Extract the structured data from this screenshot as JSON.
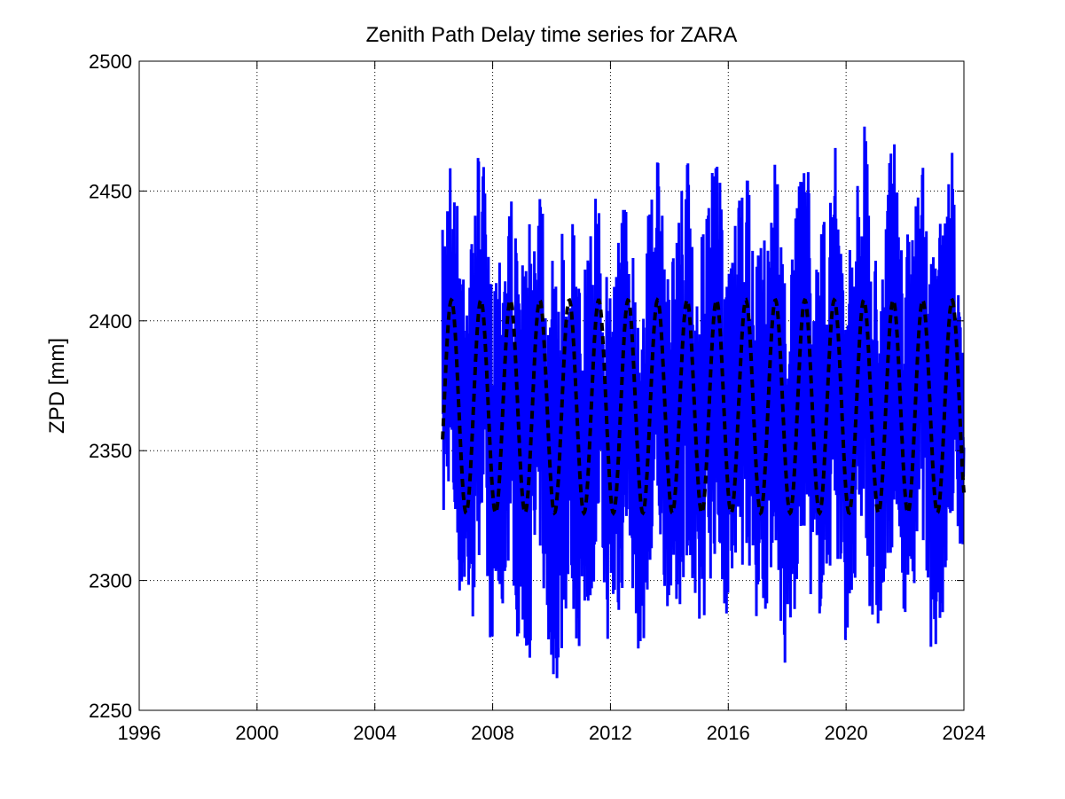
{
  "chart_data": {
    "type": "line",
    "title": "Zenith Path Delay time series for ZARA",
    "xlabel": "",
    "ylabel": "ZPD [mm]",
    "xlim": [
      1996,
      2024
    ],
    "ylim": [
      2250,
      2500
    ],
    "xticks": [
      "1996",
      "2000",
      "2004",
      "2008",
      "2012",
      "2016",
      "2020",
      "2024"
    ],
    "yticks": [
      "2250",
      "2300",
      "2350",
      "2400",
      "2450",
      "2500"
    ],
    "grid": true,
    "series": [
      {
        "style": "solid",
        "color": "#0000ff",
        "x": [
          2006.3,
          2006.5,
          2006.9,
          2007.3,
          2007.6,
          2007.9,
          2008.3,
          2008.6,
          2008.9,
          2009.3,
          2009.6,
          2009.9,
          2010.3,
          2010.6,
          2010.9,
          2011.3,
          2011.6,
          2011.9,
          2012.3,
          2012.6,
          2012.9,
          2013.3,
          2013.6,
          2013.9,
          2014.3,
          2014.6,
          2014.9,
          2015.3,
          2015.6,
          2015.9,
          2016.3,
          2016.6,
          2016.9,
          2017.3,
          2017.6,
          2017.9,
          2018.3,
          2018.6,
          2018.9,
          2019.3,
          2019.6,
          2019.9,
          2020.3,
          2020.6,
          2020.9,
          2021.3,
          2021.6,
          2021.9,
          2022.3,
          2022.6,
          2022.9,
          2023.3,
          2023.6,
          2024.0
        ],
        "upper": [
          2435,
          2471,
          2440,
          2435,
          2477,
          2420,
          2440,
          2455,
          2420,
          2440,
          2474,
          2420,
          2430,
          2465,
          2415,
          2430,
          2460,
          2415,
          2448,
          2450,
          2415,
          2445,
          2465,
          2420,
          2445,
          2470,
          2420,
          2445,
          2475,
          2420,
          2440,
          2465,
          2420,
          2440,
          2470,
          2420,
          2440,
          2480,
          2420,
          2445,
          2475,
          2420,
          2445,
          2485,
          2425,
          2445,
          2475,
          2425,
          2445,
          2465,
          2425,
          2445,
          2467,
          2387
        ],
        "lower": [
          2311,
          2335,
          2290,
          2277,
          2318,
          2276,
          2276,
          2315,
          2268,
          2270,
          2310,
          2264,
          2260,
          2300,
          2270,
          2290,
          2310,
          2276,
          2280,
          2320,
          2271,
          2280,
          2318,
          2290,
          2285,
          2310,
          2263,
          2295,
          2310,
          2285,
          2288,
          2315,
          2285,
          2288,
          2315,
          2260,
          2285,
          2320,
          2280,
          2290,
          2315,
          2275,
          2285,
          2320,
          2274,
          2280,
          2318,
          2287,
          2290,
          2318,
          2270,
          2280,
          2320,
          2306
        ]
      },
      {
        "style": "dashed",
        "color": "#000000",
        "model": "annual",
        "mean": 2367,
        "amplitude": 41,
        "peak_fraction": 0.6,
        "x_start": 2006.3,
        "x_end": 2024.0
      }
    ]
  }
}
